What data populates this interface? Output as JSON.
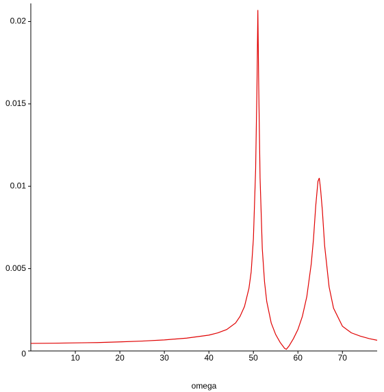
{
  "chart_data": {
    "type": "line",
    "x_label": "omega",
    "x": [
      0,
      5,
      10,
      15,
      20,
      25,
      30,
      35,
      40,
      42,
      44,
      46,
      47,
      48,
      49,
      49.5,
      50,
      50.5,
      50.8,
      51,
      51.2,
      51.5,
      52,
      52.5,
      53,
      54,
      55,
      56,
      57,
      57.4,
      58,
      59,
      60,
      61,
      62,
      63,
      63.5,
      64,
      64.5,
      64.8,
      65.1,
      65.5,
      66,
      67,
      68,
      70,
      72,
      74,
      76,
      77.8
    ],
    "series": [
      {
        "color": "#e00000",
        "values": [
          0.00046,
          0.00047,
          0.00049,
          0.00051,
          0.00055,
          0.0006,
          0.00067,
          0.00078,
          0.00096,
          0.0011,
          0.0013,
          0.0017,
          0.0021,
          0.0027,
          0.0038,
          0.0048,
          0.0068,
          0.011,
          0.016,
          0.0207,
          0.016,
          0.0105,
          0.0062,
          0.0042,
          0.003,
          0.0017,
          0.001,
          0.00052,
          0.00016,
          0.0001,
          0.0003,
          0.00075,
          0.0013,
          0.0021,
          0.0033,
          0.0053,
          0.0068,
          0.0088,
          0.0103,
          0.0105,
          0.0098,
          0.0085,
          0.0064,
          0.0039,
          0.0026,
          0.0015,
          0.0011,
          0.0009,
          0.00075,
          0.00065
        ]
      }
    ],
    "xlim": [
      0,
      77.8
    ],
    "xticks": [
      10,
      20,
      30,
      40,
      50,
      60,
      70
    ],
    "ylim": [
      0,
      0.0211
    ],
    "yticks": [
      0,
      0.005,
      0.01,
      0.015,
      0.02
    ]
  }
}
